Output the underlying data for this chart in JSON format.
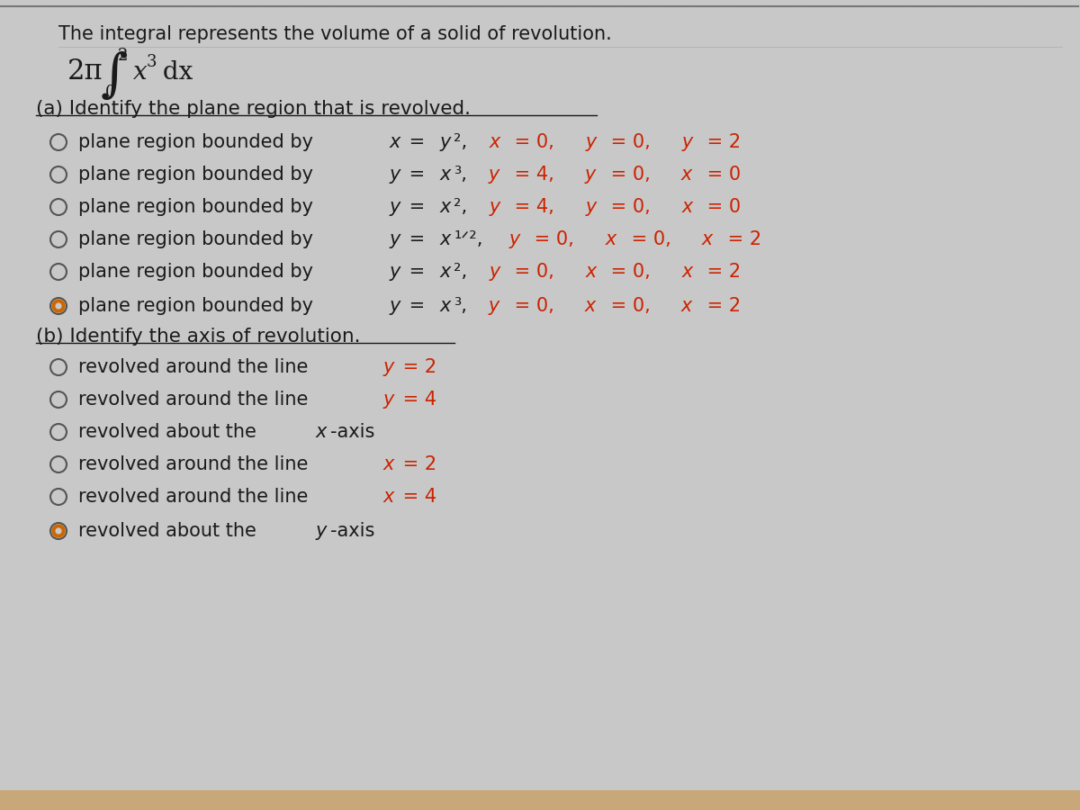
{
  "bg_color": "#c8c8c8",
  "header": "The integral represents the volume of a solid of revolution.",
  "text_color": "#1a1a1a",
  "red_color": "#cc2200",
  "option_fontsize": 15,
  "label_fontsize": 15.5,
  "header_fontsize": 15,
  "part_a_label": "(a) Identify the plane region that is revolved.",
  "part_b_label": "(b) Identify the axis of revolution.",
  "part_a_options": [
    {
      "segments": [
        {
          "t": "plane region bounded by ",
          "s": "normal"
        },
        {
          "t": "x",
          "s": "italic"
        },
        {
          "t": " = ",
          "s": "normal"
        },
        {
          "t": "y",
          "s": "italic"
        },
        {
          "t": "²,",
          "s": "normal"
        },
        {
          "t": "   x",
          "s": "italic_red"
        },
        {
          "t": " = 0,",
          "s": "red"
        },
        {
          "t": "   y",
          "s": "italic_red"
        },
        {
          "t": " = 0,",
          "s": "red"
        },
        {
          "t": "   y",
          "s": "italic_red"
        },
        {
          "t": " = 2",
          "s": "red"
        }
      ],
      "selected": false
    },
    {
      "segments": [
        {
          "t": "plane region bounded by ",
          "s": "normal"
        },
        {
          "t": "y",
          "s": "italic"
        },
        {
          "t": " = ",
          "s": "normal"
        },
        {
          "t": "x",
          "s": "italic"
        },
        {
          "t": "³,",
          "s": "normal"
        },
        {
          "t": "   y",
          "s": "italic_red"
        },
        {
          "t": " = 4,",
          "s": "red"
        },
        {
          "t": "   y",
          "s": "italic_red"
        },
        {
          "t": " = 0,",
          "s": "red"
        },
        {
          "t": "   x",
          "s": "italic_red"
        },
        {
          "t": " = 0",
          "s": "red"
        }
      ],
      "selected": false
    },
    {
      "segments": [
        {
          "t": "plane region bounded by ",
          "s": "normal"
        },
        {
          "t": "y",
          "s": "italic"
        },
        {
          "t": " = ",
          "s": "normal"
        },
        {
          "t": "x",
          "s": "italic"
        },
        {
          "t": "²,",
          "s": "normal"
        },
        {
          "t": "   y",
          "s": "italic_red"
        },
        {
          "t": " = 4,",
          "s": "red"
        },
        {
          "t": "   y",
          "s": "italic_red"
        },
        {
          "t": " = 0,",
          "s": "red"
        },
        {
          "t": "   x",
          "s": "italic_red"
        },
        {
          "t": " = 0",
          "s": "red"
        }
      ],
      "selected": false
    },
    {
      "segments": [
        {
          "t": "plane region bounded by ",
          "s": "normal"
        },
        {
          "t": "y",
          "s": "italic"
        },
        {
          "t": " = ",
          "s": "normal"
        },
        {
          "t": "x",
          "s": "italic"
        },
        {
          "t": "¹ᐟ²,",
          "s": "superscript_normal"
        },
        {
          "t": "   y",
          "s": "italic_red"
        },
        {
          "t": " = 0,",
          "s": "red"
        },
        {
          "t": "   x",
          "s": "italic_red"
        },
        {
          "t": " = 0,",
          "s": "red"
        },
        {
          "t": "   x",
          "s": "italic_red"
        },
        {
          "t": " = 2",
          "s": "red"
        }
      ],
      "selected": false
    },
    {
      "segments": [
        {
          "t": "plane region bounded by ",
          "s": "normal"
        },
        {
          "t": "y",
          "s": "italic"
        },
        {
          "t": " = ",
          "s": "normal"
        },
        {
          "t": "x",
          "s": "italic"
        },
        {
          "t": "²,",
          "s": "normal"
        },
        {
          "t": "   y",
          "s": "italic_red"
        },
        {
          "t": " = 0,",
          "s": "red"
        },
        {
          "t": "   x",
          "s": "italic_red"
        },
        {
          "t": " = 0,",
          "s": "red"
        },
        {
          "t": "   x",
          "s": "italic_red"
        },
        {
          "t": " = 2",
          "s": "red"
        }
      ],
      "selected": false
    },
    {
      "segments": [
        {
          "t": "plane region bounded by ",
          "s": "normal"
        },
        {
          "t": "y",
          "s": "italic"
        },
        {
          "t": " = ",
          "s": "normal"
        },
        {
          "t": "x",
          "s": "italic"
        },
        {
          "t": "³,",
          "s": "normal"
        },
        {
          "t": "   y",
          "s": "italic_red"
        },
        {
          "t": " = 0,",
          "s": "red"
        },
        {
          "t": "   x",
          "s": "italic_red"
        },
        {
          "t": " = 0,",
          "s": "red"
        },
        {
          "t": "   x",
          "s": "italic_red"
        },
        {
          "t": " = 2",
          "s": "red"
        }
      ],
      "selected": true
    }
  ],
  "part_b_options": [
    {
      "segments": [
        {
          "t": "revolved around the line ",
          "s": "normal"
        },
        {
          "t": "y",
          "s": "italic_red"
        },
        {
          "t": " = 2",
          "s": "red"
        }
      ],
      "selected": false
    },
    {
      "segments": [
        {
          "t": "revolved around the line ",
          "s": "normal"
        },
        {
          "t": "y",
          "s": "italic_red"
        },
        {
          "t": " = 4",
          "s": "red"
        }
      ],
      "selected": false
    },
    {
      "segments": [
        {
          "t": "revolved about the ",
          "s": "normal"
        },
        {
          "t": "x",
          "s": "italic"
        },
        {
          "t": "-axis",
          "s": "normal"
        }
      ],
      "selected": false
    },
    {
      "segments": [
        {
          "t": "revolved around the line ",
          "s": "normal"
        },
        {
          "t": "x",
          "s": "italic_red"
        },
        {
          "t": " = 2",
          "s": "red"
        }
      ],
      "selected": false
    },
    {
      "segments": [
        {
          "t": "revolved around the line ",
          "s": "normal"
        },
        {
          "t": "x",
          "s": "italic_red"
        },
        {
          "t": " = 4",
          "s": "red"
        }
      ],
      "selected": false
    },
    {
      "segments": [
        {
          "t": "revolved about the ",
          "s": "normal"
        },
        {
          "t": "y",
          "s": "italic"
        },
        {
          "t": "-axis",
          "s": "normal"
        }
      ],
      "selected": true
    }
  ]
}
